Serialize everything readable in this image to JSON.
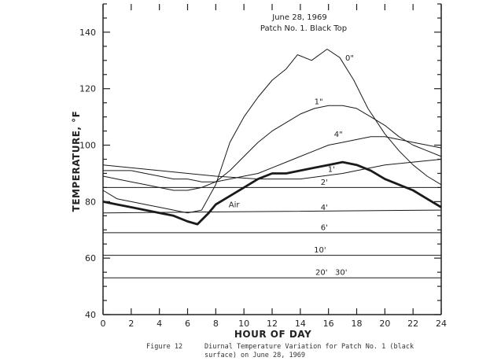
{
  "chart_data": {
    "type": "line",
    "title": "June 28, 1969",
    "subtitle": "Patch No. 1. Black Top",
    "xlabel": "HOUR OF DAY",
    "ylabel": "TEMPERATURE, °F",
    "xlim": [
      0,
      24
    ],
    "ylim": [
      40,
      150
    ],
    "xticks": [
      "0",
      "2",
      "4",
      "6",
      "8",
      "10",
      "12",
      "14",
      "16",
      "18",
      "20",
      "22",
      "24"
    ],
    "yticks": [
      "40",
      "60",
      "80",
      "100",
      "120",
      "140"
    ],
    "grid": false,
    "series": [
      {
        "name": "0\"",
        "label": "0\"",
        "points": [
          [
            0,
            84
          ],
          [
            1,
            81
          ],
          [
            2,
            80
          ],
          [
            3,
            79
          ],
          [
            4,
            78
          ],
          [
            5,
            77
          ],
          [
            6,
            76
          ],
          [
            7,
            77
          ],
          [
            8,
            86
          ],
          [
            9,
            101
          ],
          [
            10,
            110
          ],
          [
            11,
            117
          ],
          [
            12,
            123
          ],
          [
            13,
            127
          ],
          [
            13.8,
            132
          ],
          [
            14.8,
            130
          ],
          [
            15.9,
            134
          ],
          [
            16.8,
            131
          ],
          [
            17.8,
            123
          ],
          [
            18.8,
            113
          ],
          [
            20,
            104
          ],
          [
            21,
            98
          ],
          [
            22,
            93
          ],
          [
            23,
            89
          ],
          [
            24,
            86
          ]
        ]
      },
      {
        "name": "1\"",
        "label": "1\"",
        "points": [
          [
            0,
            89
          ],
          [
            1,
            88
          ],
          [
            2,
            87
          ],
          [
            3,
            86
          ],
          [
            4,
            85
          ],
          [
            5,
            84
          ],
          [
            6,
            84
          ],
          [
            7,
            85
          ],
          [
            8,
            87
          ],
          [
            9,
            91
          ],
          [
            10,
            96
          ],
          [
            11,
            101
          ],
          [
            12,
            105
          ],
          [
            13,
            108
          ],
          [
            14,
            111
          ],
          [
            15,
            113
          ],
          [
            16,
            114
          ],
          [
            17,
            114
          ],
          [
            18,
            113
          ],
          [
            19,
            110
          ],
          [
            20,
            107
          ],
          [
            21,
            103
          ],
          [
            22,
            100
          ],
          [
            23,
            98
          ],
          [
            24,
            96
          ]
        ]
      },
      {
        "name": "4\"",
        "label": "4\"",
        "points": [
          [
            0,
            91
          ],
          [
            1,
            91
          ],
          [
            2,
            91
          ],
          [
            3,
            90
          ],
          [
            4,
            89
          ],
          [
            5,
            88
          ],
          [
            6,
            88
          ],
          [
            7,
            87
          ],
          [
            8,
            87
          ],
          [
            9,
            88
          ],
          [
            10,
            89
          ],
          [
            11,
            90
          ],
          [
            12,
            92
          ],
          [
            13,
            94
          ],
          [
            14,
            96
          ],
          [
            15,
            98
          ],
          [
            16,
            100
          ],
          [
            17,
            101
          ],
          [
            18,
            102
          ],
          [
            19,
            103
          ],
          [
            20,
            103
          ],
          [
            21,
            102
          ],
          [
            22,
            101
          ],
          [
            23,
            100
          ],
          [
            24,
            99
          ]
        ]
      },
      {
        "name": "Air",
        "label": "Air",
        "points": [
          [
            0,
            80
          ],
          [
            1,
            79
          ],
          [
            2,
            78
          ],
          [
            3,
            77
          ],
          [
            4,
            76
          ],
          [
            5,
            75
          ],
          [
            6,
            73
          ],
          [
            6.7,
            72
          ],
          [
            7.5,
            76
          ],
          [
            8,
            79
          ],
          [
            9,
            82
          ],
          [
            10,
            85
          ],
          [
            11,
            88
          ],
          [
            12,
            90
          ],
          [
            13,
            90
          ],
          [
            14,
            91
          ],
          [
            15,
            92
          ],
          [
            16,
            93
          ],
          [
            17,
            94
          ],
          [
            18,
            93
          ],
          [
            19,
            91
          ],
          [
            20,
            88
          ],
          [
            21,
            86
          ],
          [
            22,
            84
          ],
          [
            23,
            81
          ],
          [
            24,
            78
          ]
        ]
      },
      {
        "name": "1'",
        "label": "1'",
        "points": [
          [
            0,
            93
          ],
          [
            4,
            91
          ],
          [
            8,
            89
          ],
          [
            11,
            88
          ],
          [
            14,
            88
          ],
          [
            17,
            90
          ],
          [
            20,
            93
          ],
          [
            22,
            94
          ],
          [
            24,
            95
          ]
        ]
      },
      {
        "name": "2'",
        "label": "2'",
        "points": [
          [
            0,
            85
          ],
          [
            12,
            85
          ],
          [
            24,
            85
          ]
        ]
      },
      {
        "name": "4'",
        "label": "4'",
        "points": [
          [
            0,
            76
          ],
          [
            12,
            76.5
          ],
          [
            24,
            77
          ]
        ]
      },
      {
        "name": "6'",
        "label": "6'",
        "points": [
          [
            0,
            69
          ],
          [
            24,
            69
          ]
        ]
      },
      {
        "name": "10'",
        "label": "10'",
        "points": [
          [
            0,
            61
          ],
          [
            24,
            61
          ]
        ]
      },
      {
        "name": "20' 30'",
        "label": "20'   30'",
        "points": [
          [
            0,
            53
          ],
          [
            24,
            53
          ]
        ]
      }
    ]
  },
  "caption": {
    "figure": "Figure 12",
    "line1": "Diurnal Temperature Variation for Patch No. 1 (black",
    "line2": "surface) on June 28, 1969"
  }
}
